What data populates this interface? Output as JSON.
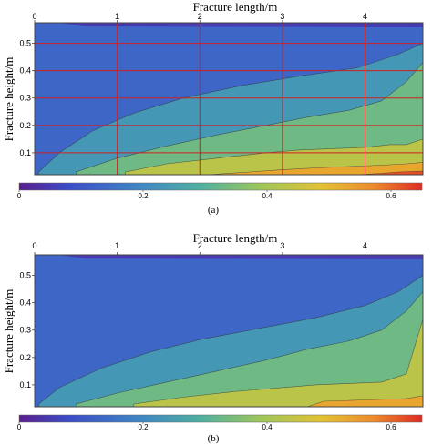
{
  "figure": {
    "panels": [
      {
        "caption": "(a)"
      },
      {
        "caption": "(b)"
      }
    ]
  },
  "chart_data": [
    {
      "type": "heatmap",
      "panel": "(a)",
      "subtype": "filled contour",
      "xlabel": "Fracture length/m",
      "ylabel": "Fracture height/m",
      "x_ticks": [
        "0",
        "1",
        "2",
        "3",
        "4"
      ],
      "y_ticks": [
        "0.1",
        "0.2",
        "0.3",
        "0.4",
        "0.5"
      ],
      "xlim": [
        0,
        4.7
      ],
      "ylim": [
        0.02,
        0.575
      ],
      "x_axis_position": "top",
      "colorbar": {
        "ticks": [
          "0",
          "0.2",
          "0.4",
          "0.6"
        ],
        "range": [
          0,
          0.65
        ],
        "position": "bottom"
      },
      "grid": {
        "x": [
          1.0,
          2.0,
          3.0,
          4.0
        ],
        "y": [
          0.1,
          0.2,
          0.3,
          0.4,
          0.5
        ],
        "color": "#d02020"
      },
      "levels": [
        0.05,
        0.13,
        0.23,
        0.33,
        0.43,
        0.53,
        0.62
      ],
      "boundaries": [
        {
          "from_level": 0.13,
          "to_level": 0.23,
          "points": [
            [
              0.05,
              0.03
            ],
            [
              0.3,
              0.1
            ],
            [
              0.7,
              0.18
            ],
            [
              1.2,
              0.245
            ],
            [
              1.8,
              0.3
            ],
            [
              2.5,
              0.345
            ],
            [
              3.2,
              0.38
            ],
            [
              3.9,
              0.41
            ],
            [
              4.4,
              0.46
            ],
            [
              4.7,
              0.5
            ]
          ]
        },
        {
          "from_level": 0.23,
          "to_level": 0.33,
          "points": [
            [
              0.5,
              0.03
            ],
            [
              1.0,
              0.08
            ],
            [
              1.6,
              0.125
            ],
            [
              2.2,
              0.165
            ],
            [
              2.8,
              0.2
            ],
            [
              3.3,
              0.23
            ],
            [
              3.8,
              0.255
            ],
            [
              4.2,
              0.29
            ],
            [
              4.5,
              0.36
            ],
            [
              4.7,
              0.43
            ]
          ]
        },
        {
          "from_level": 0.33,
          "to_level": 0.43,
          "points": [
            [
              1.1,
              0.03
            ],
            [
              1.6,
              0.06
            ],
            [
              2.2,
              0.08
            ],
            [
              2.8,
              0.1
            ],
            [
              3.2,
              0.11
            ],
            [
              3.6,
              0.115
            ],
            [
              4.0,
              0.12
            ],
            [
              4.3,
              0.13
            ],
            [
              4.5,
              0.13
            ],
            [
              4.7,
              0.15
            ]
          ]
        },
        {
          "from_level": 0.43,
          "to_level": 0.53,
          "points": [
            [
              2.1,
              0.02
            ],
            [
              2.6,
              0.03
            ],
            [
              3.0,
              0.038
            ],
            [
              3.4,
              0.045
            ],
            [
              3.8,
              0.05
            ],
            [
              4.2,
              0.055
            ],
            [
              4.5,
              0.06
            ],
            [
              4.7,
              0.065
            ]
          ]
        },
        {
          "from_level": 0.53,
          "to_level": 0.62,
          "points": [
            [
              3.9,
              0.02
            ],
            [
              4.2,
              0.025
            ],
            [
              4.4,
              0.03
            ],
            [
              4.7,
              0.033
            ]
          ]
        }
      ]
    },
    {
      "type": "heatmap",
      "panel": "(b)",
      "subtype": "filled contour",
      "xlabel": "Fracture length/m",
      "ylabel": "Fracture height/m",
      "x_ticks": [
        "0",
        "1",
        "2",
        "3",
        "4"
      ],
      "y_ticks": [
        "0.1",
        "0.2",
        "0.3",
        "0.4",
        "0.5"
      ],
      "xlim": [
        0,
        4.7
      ],
      "ylim": [
        0.02,
        0.575
      ],
      "x_axis_position": "top",
      "colorbar": {
        "ticks": [
          "0",
          "0.2",
          "0.4",
          "0.6"
        ],
        "range": [
          0,
          0.65
        ],
        "position": "bottom"
      },
      "grid": null,
      "levels": [
        0.05,
        0.13,
        0.23,
        0.33,
        0.43,
        0.53,
        0.62
      ],
      "boundaries": [
        {
          "from_level": 0.13,
          "to_level": 0.23,
          "points": [
            [
              0.05,
              0.03
            ],
            [
              0.3,
              0.09
            ],
            [
              0.8,
              0.16
            ],
            [
              1.4,
              0.22
            ],
            [
              2.0,
              0.265
            ],
            [
              2.7,
              0.305
            ],
            [
              3.4,
              0.345
            ],
            [
              4.0,
              0.39
            ],
            [
              4.4,
              0.44
            ],
            [
              4.7,
              0.5
            ]
          ]
        },
        {
          "from_level": 0.23,
          "to_level": 0.33,
          "points": [
            [
              0.5,
              0.03
            ],
            [
              1.0,
              0.07
            ],
            [
              1.6,
              0.11
            ],
            [
              2.2,
              0.15
            ],
            [
              2.8,
              0.19
            ],
            [
              3.3,
              0.23
            ],
            [
              3.8,
              0.26
            ],
            [
              4.2,
              0.3
            ],
            [
              4.5,
              0.37
            ],
            [
              4.7,
              0.44
            ]
          ]
        },
        {
          "from_level": 0.33,
          "to_level": 0.43,
          "points": [
            [
              1.2,
              0.03
            ],
            [
              1.8,
              0.055
            ],
            [
              2.4,
              0.075
            ],
            [
              3.0,
              0.09
            ],
            [
              3.4,
              0.1
            ],
            [
              3.8,
              0.105
            ],
            [
              4.2,
              0.11
            ],
            [
              4.5,
              0.14
            ],
            [
              4.7,
              0.34
            ]
          ]
        },
        {
          "from_level": 0.43,
          "to_level": 0.53,
          "points": [
            [
              3.3,
              0.02
            ],
            [
              3.5,
              0.04
            ],
            [
              4.0,
              0.045
            ],
            [
              4.5,
              0.05
            ],
            [
              4.7,
              0.06
            ]
          ]
        }
      ]
    }
  ]
}
